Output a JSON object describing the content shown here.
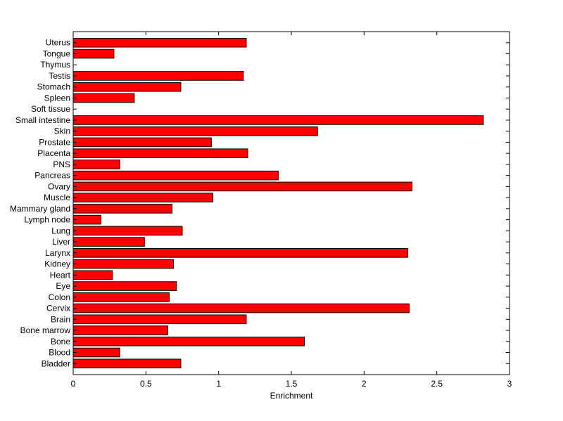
{
  "chart_data": {
    "type": "bar",
    "orientation": "horizontal",
    "title": "",
    "xlabel": "Enrichment",
    "ylabel": "",
    "xlim": [
      0,
      3
    ],
    "xticks": [
      "0",
      "0.5",
      "1",
      "1.5",
      "2",
      "2.5",
      "3"
    ],
    "grid": false,
    "legend": "none",
    "bar_color": "#ff0000",
    "edge_color": "#000000",
    "categories": [
      "Bladder",
      "Blood",
      "Bone",
      "Bone marrow",
      "Brain",
      "Cervix",
      "Colon",
      "Eye",
      "Heart",
      "Kidney",
      "Larynx",
      "Liver",
      "Lung",
      "Lymph node",
      "Mammary gland",
      "Muscle",
      "Ovary",
      "Pancreas",
      "PNS",
      "Placenta",
      "Prostate",
      "Skin",
      "Small intestine",
      "Soft tissue",
      "Spleen",
      "Stomach",
      "Testis",
      "Thymus",
      "Tongue",
      "Uterus"
    ],
    "values": [
      0.74,
      0.32,
      1.59,
      0.65,
      1.19,
      2.31,
      0.66,
      0.71,
      0.27,
      0.69,
      2.3,
      0.49,
      0.75,
      0.19,
      0.68,
      0.96,
      2.33,
      1.41,
      0.32,
      1.2,
      0.95,
      1.68,
      2.82,
      0,
      0.42,
      0.74,
      1.17,
      0,
      0.28,
      1.19
    ]
  }
}
